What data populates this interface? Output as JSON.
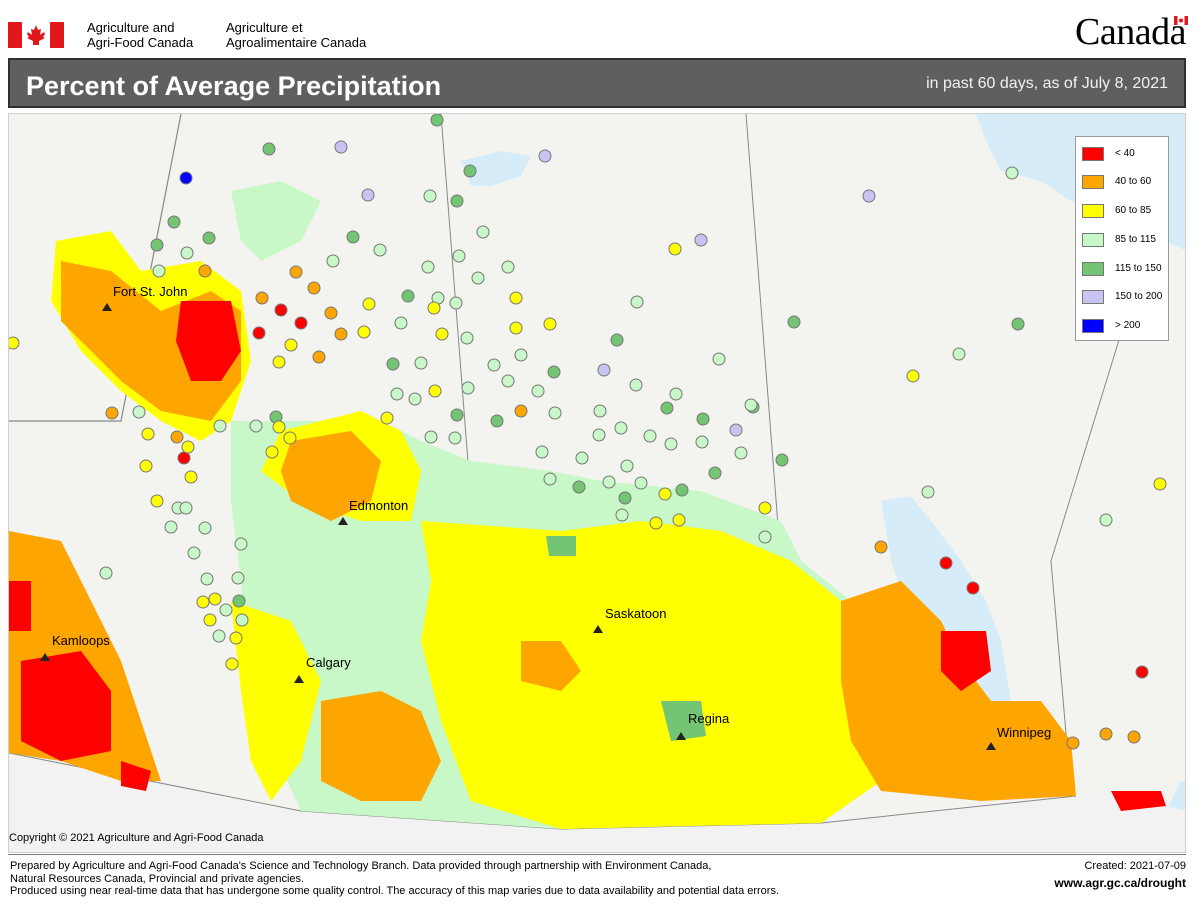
{
  "header": {
    "dept_en_line1": "Agriculture and",
    "dept_en_line2": "Agri-Food Canada",
    "dept_fr_line1": "Agriculture et",
    "dept_fr_line2": "Agroalimentaire Canada",
    "wordmark": "Canada"
  },
  "title": "Percent of Average Precipitation",
  "subtitle": "in past 60 days, as of July 8, 2021",
  "legend": [
    {
      "label": "< 40",
      "color": "#ff0000"
    },
    {
      "label": "40 to 60",
      "color": "#ffa500"
    },
    {
      "label": "60 to 85",
      "color": "#ffff00"
    },
    {
      "label": "85 to 115",
      "color": "#c8f7c8"
    },
    {
      "label": "115 to 150",
      "color": "#73c473"
    },
    {
      "label": "150 to 200",
      "color": "#c8c4f2"
    },
    {
      "label": "> 200",
      "color": "#0000ff"
    }
  ],
  "cities": [
    {
      "name": "Fort St. John"
    },
    {
      "name": "Edmonton"
    },
    {
      "name": "Kamloops"
    },
    {
      "name": "Calgary"
    },
    {
      "name": "Saskatoon"
    },
    {
      "name": "Regina"
    },
    {
      "name": "Winnipeg"
    }
  ],
  "copyright": "Copyright © 2021 Agriculture and Agri-Food Canada",
  "footer": {
    "line1": "Prepared by Agriculture and Agri-Food Canada's Science and Technology Branch. Data provided through partnership with Environment Canada,",
    "line2": "Natural Resources Canada, Provincial and private agencies.",
    "line3": "Produced using near real-time data that has undergone some quality control. The accuracy of this map varies due to data availability and potential data errors.",
    "created": "Created: 2021-07-09",
    "url": "www.agr.gc.ca/drought"
  },
  "colors": {
    "red": "#ff0000",
    "orange": "#ffa500",
    "yellow": "#ffff00",
    "light_green": "#c8f7c8",
    "green": "#73c473",
    "lavender": "#c8c4f2",
    "blue": "#0000ff",
    "water": "#d6ecf8",
    "land": "#f4f4f1"
  }
}
